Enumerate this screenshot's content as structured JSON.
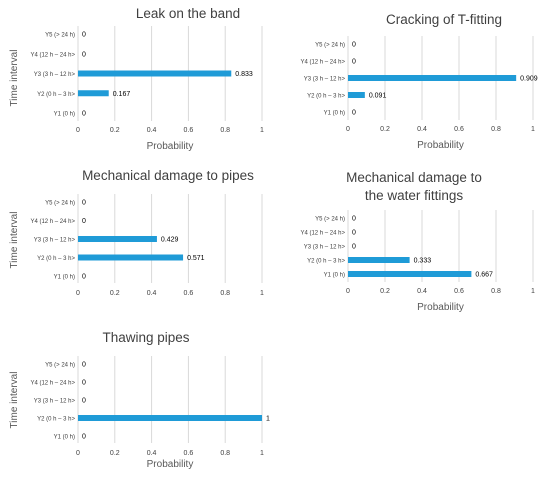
{
  "colors": {
    "bar": "#1f9bd7",
    "grid": "#d9d9d9",
    "text": "#404040"
  },
  "chart_data": [
    {
      "type": "bar",
      "orientation": "horizontal",
      "title": "Leak on the band",
      "xlabel": "Probability",
      "ylabel": "Time interval",
      "xlim": [
        0,
        1
      ],
      "xticks": [
        "0",
        "0.2",
        "0.4",
        "0.6",
        "0.8",
        "1"
      ],
      "grid": true,
      "categories": [
        "Y5  (> 24 h)",
        "Y4  (12 h – 24 h>",
        "Y3 (3 h – 12 h>",
        "Y2 (0 h – 3 h>",
        "Y1 (0 h)"
      ],
      "values": [
        0,
        0,
        0.833,
        0.167,
        0
      ],
      "value_labels": [
        "0",
        "0",
        "0.833",
        "0.167",
        "0"
      ]
    },
    {
      "type": "bar",
      "orientation": "horizontal",
      "title": "Cracking of T-fitting",
      "xlabel": "Probability",
      "ylabel": "",
      "xlim": [
        0,
        1
      ],
      "xticks": [
        "0",
        "0.2",
        "0.4",
        "0.6",
        "0.8",
        "1"
      ],
      "grid": true,
      "categories": [
        "Y5  (> 24 h)",
        "Y4  (12 h – 24 h>",
        "Y3 (3 h – 12 h>",
        "Y2 (0 h – 3 h>",
        "Y1 (0 h)"
      ],
      "values": [
        0,
        0,
        0.909,
        0.091,
        0
      ],
      "value_labels": [
        "0",
        "0",
        "0.909",
        "0.091",
        "0"
      ]
    },
    {
      "type": "bar",
      "orientation": "horizontal",
      "title": "Mechanical damage to pipes",
      "xlabel": "",
      "ylabel": "Time interval",
      "xlim": [
        0,
        1
      ],
      "xticks": [
        "0",
        "0.2",
        "0.4",
        "0.6",
        "0.8",
        "1"
      ],
      "grid": true,
      "categories": [
        "Y5  (> 24 h)",
        "Y4  (12 h – 24 h>",
        "Y3 (3 h – 12 h>",
        "Y2 (0 h – 3 h>",
        "Y1 (0 h)"
      ],
      "values": [
        0,
        0,
        0.429,
        0.571,
        0
      ],
      "value_labels": [
        "0",
        "0",
        "0.429",
        "0.571",
        "0"
      ]
    },
    {
      "type": "bar",
      "orientation": "horizontal",
      "title": "Mechanical damage to the water fittings",
      "xlabel": "Probability",
      "ylabel": "",
      "xlim": [
        0,
        1
      ],
      "xticks": [
        "0",
        "0.2",
        "0.4",
        "0.6",
        "0.8",
        "1"
      ],
      "grid": true,
      "categories": [
        "Y5  (> 24 h)",
        "Y4  (12 h – 24 h>",
        "Y3 (3 h – 12 h>",
        "Y2 (0 h – 3 h>",
        "Y1 (0 h)"
      ],
      "values": [
        0,
        0,
        0,
        0.333,
        0.667
      ],
      "value_labels": [
        "0",
        "0",
        "0",
        "0.333",
        "0.667"
      ]
    },
    {
      "type": "bar",
      "orientation": "horizontal",
      "title": "Thawing pipes",
      "xlabel": "Probability",
      "ylabel": "Time interval",
      "xlim": [
        0,
        1
      ],
      "xticks": [
        "0",
        "0.2",
        "0.4",
        "0.6",
        "0.8",
        "1"
      ],
      "grid": true,
      "categories": [
        "Y5  (> 24 h)",
        "Y4  (12 h – 24 h>",
        "Y3 (3 h – 12 h>",
        "Y2 (0 h – 3 h>",
        "Y1 (0 h)"
      ],
      "values": [
        0,
        0,
        0,
        1,
        0
      ],
      "value_labels": [
        "0",
        "0",
        "0",
        "1",
        "0"
      ]
    }
  ]
}
